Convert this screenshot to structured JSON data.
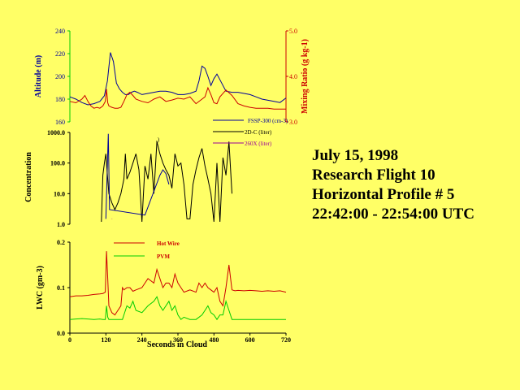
{
  "title_lines": [
    "July 15, 1998",
    "Research Flight 10",
    "Horizontal Profile # 5",
    "22:42:00 - 22:54:00 UTC"
  ],
  "colors": {
    "background": "#ffff66",
    "blue": "#000099",
    "red": "#cc0000",
    "green": "#00cc00",
    "black": "#000000",
    "magenta": "#990099"
  },
  "chart_data": [
    {
      "type": "line",
      "panel": "altitude",
      "xlim": [
        0,
        720
      ],
      "x_ticks": [],
      "ylabel": "Altitude (m)",
      "ylim": [
        160,
        240
      ],
      "yticks": [
        "160",
        "180",
        "200",
        "220",
        "240"
      ],
      "y2label": "Mixing Ratio (g kg-1)",
      "y2lim": [
        3.0,
        5.0
      ],
      "y2ticks": [
        "3.0",
        "4.0",
        "5.0"
      ],
      "grid": false,
      "series": [
        {
          "name": "",
          "axis": "left",
          "color": "blue",
          "x": [
            0,
            20,
            40,
            60,
            80,
            100,
            115,
            125,
            135,
            145,
            155,
            165,
            175,
            185,
            195,
            205,
            215,
            225,
            240,
            260,
            280,
            300,
            320,
            340,
            360,
            380,
            400,
            420,
            430,
            440,
            450,
            460,
            470,
            480,
            490,
            500,
            520,
            540,
            560,
            580,
            600,
            620,
            640,
            660,
            680,
            700,
            720
          ],
          "y": [
            182,
            180,
            177,
            175,
            176,
            178,
            183,
            196,
            221,
            213,
            194,
            189,
            186,
            184,
            184,
            186,
            187,
            186,
            184,
            185,
            186,
            187,
            187,
            186,
            184,
            184,
            185,
            187,
            196,
            209,
            207,
            200,
            192,
            198,
            202,
            197,
            187,
            186,
            186,
            185,
            184,
            182,
            180,
            179,
            178,
            177,
            181
          ]
        },
        {
          "name": "",
          "axis": "right",
          "color": "red",
          "x": [
            0,
            20,
            40,
            50,
            60,
            70,
            80,
            90,
            100,
            110,
            118,
            122,
            126,
            130,
            140,
            150,
            160,
            170,
            180,
            190,
            200,
            210,
            220,
            240,
            260,
            280,
            300,
            320,
            340,
            360,
            380,
            400,
            420,
            440,
            450,
            460,
            470,
            480,
            490,
            500,
            520,
            540,
            560,
            580,
            600,
            620,
            640,
            660,
            680,
            700,
            720
          ],
          "y": [
            3.45,
            3.42,
            3.5,
            3.58,
            3.45,
            3.35,
            3.3,
            3.32,
            3.3,
            3.35,
            3.45,
            3.72,
            3.42,
            3.35,
            3.32,
            3.3,
            3.3,
            3.32,
            3.45,
            3.6,
            3.65,
            3.58,
            3.5,
            3.45,
            3.42,
            3.5,
            3.55,
            3.45,
            3.48,
            3.52,
            3.5,
            3.55,
            3.4,
            3.5,
            3.55,
            3.75,
            3.6,
            3.42,
            3.4,
            3.55,
            3.7,
            3.58,
            3.4,
            3.35,
            3.32,
            3.3,
            3.3,
            3.3,
            3.28,
            3.28,
            3.28
          ]
        }
      ]
    },
    {
      "type": "line",
      "panel": "concentration",
      "xlim": [
        0,
        720
      ],
      "x_ticks": [],
      "ylabel": "Concentration",
      "ylim": [
        1,
        1000
      ],
      "yscale": "log",
      "yticks": [
        "1.0",
        "10.0",
        "100.0",
        "1000.0"
      ],
      "legend": [
        "FSSP-300 (cm-3)",
        "2D-C (liter)",
        "260X (liter)"
      ],
      "legend_position": "top-right",
      "annotations": [
        ",)"
      ],
      "series": [
        {
          "name": "FSSP-300 (cm-3)",
          "color": "blue",
          "x": [
            120,
            124,
            128,
            132,
            250,
            300,
            310,
            320,
            330
          ],
          "y": [
            1.5,
            40,
            900,
            3,
            2,
            40,
            60,
            45,
            20
          ]
        },
        {
          "name": "2D-C (liter)",
          "color": "black",
          "x": [
            105,
            110,
            115,
            120,
            125,
            130,
            140,
            150,
            160,
            170,
            180,
            185,
            190,
            200,
            210,
            220,
            230,
            240,
            250,
            260,
            270,
            280,
            290,
            300,
            310,
            320,
            330,
            340,
            350,
            360,
            370,
            380,
            390,
            400,
            410,
            420,
            430,
            440,
            450,
            460,
            470,
            480,
            490,
            500,
            510,
            520,
            530,
            540
          ],
          "y": [
            1.2,
            40,
            100,
            200,
            40,
            10,
            5,
            3,
            5,
            10,
            30,
            200,
            30,
            50,
            100,
            200,
            60,
            1.2,
            80,
            30,
            200,
            10,
            500,
            200,
            100,
            60,
            40,
            15,
            200,
            80,
            100,
            20,
            1.5,
            1.5,
            20,
            60,
            150,
            300,
            80,
            30,
            10,
            1.2,
            100,
            1.2,
            150,
            40,
            500,
            10
          ]
        },
        {
          "name": "260X (liter)",
          "color": "magenta",
          "x": [
            140,
            141
          ],
          "y": [
            1.5,
            1.5
          ]
        }
      ]
    },
    {
      "type": "line",
      "panel": "lwc",
      "xlim": [
        0,
        720
      ],
      "xlabel": "Seconds in Cloud",
      "x_ticks": [
        "0",
        "120",
        "240",
        "360",
        "480",
        "600",
        "720"
      ],
      "ylabel": "LWC (gm-3)",
      "ylim": [
        0,
        0.2
      ],
      "yticks": [
        "0.0",
        "0.1",
        "0.2"
      ],
      "legend": [
        "Hot Wire",
        "PVM"
      ],
      "legend_position": "top",
      "series": [
        {
          "name": "Hot Wire",
          "color": "red",
          "x": [
            0,
            20,
            40,
            60,
            80,
            100,
            110,
            118,
            122,
            126,
            130,
            140,
            150,
            160,
            170,
            175,
            180,
            190,
            200,
            210,
            220,
            240,
            260,
            280,
            290,
            300,
            310,
            320,
            330,
            340,
            350,
            360,
            370,
            380,
            400,
            420,
            430,
            440,
            450,
            460,
            470,
            480,
            490,
            500,
            510,
            520,
            530,
            540,
            550,
            560,
            580,
            600,
            620,
            640,
            660,
            680,
            700,
            720
          ],
          "y": [
            0.08,
            0.082,
            0.082,
            0.083,
            0.085,
            0.086,
            0.087,
            0.09,
            0.18,
            0.12,
            0.06,
            0.045,
            0.04,
            0.05,
            0.06,
            0.1,
            0.095,
            0.1,
            0.1,
            0.092,
            0.095,
            0.1,
            0.12,
            0.11,
            0.14,
            0.12,
            0.1,
            0.11,
            0.11,
            0.1,
            0.13,
            0.11,
            0.1,
            0.09,
            0.095,
            0.09,
            0.11,
            0.1,
            0.11,
            0.1,
            0.095,
            0.09,
            0.1,
            0.07,
            0.06,
            0.1,
            0.15,
            0.095,
            0.093,
            0.094,
            0.093,
            0.094,
            0.093,
            0.092,
            0.093,
            0.092,
            0.093,
            0.09
          ]
        },
        {
          "name": "PVM",
          "color": "green",
          "x": [
            0,
            20,
            40,
            60,
            80,
            100,
            110,
            118,
            122,
            126,
            130,
            140,
            150,
            160,
            175,
            180,
            190,
            200,
            210,
            220,
            240,
            260,
            280,
            290,
            300,
            310,
            320,
            330,
            340,
            350,
            360,
            370,
            380,
            400,
            420,
            440,
            450,
            460,
            470,
            480,
            490,
            500,
            510,
            520,
            530,
            540,
            560,
            580,
            600,
            620,
            640,
            660,
            680,
            700,
            720
          ],
          "y": [
            0.03,
            0.031,
            0.032,
            0.031,
            0.03,
            0.031,
            0.03,
            0.03,
            0.06,
            0.035,
            0.03,
            0.03,
            0.03,
            0.03,
            0.03,
            0.04,
            0.06,
            0.055,
            0.07,
            0.05,
            0.045,
            0.06,
            0.07,
            0.08,
            0.06,
            0.05,
            0.06,
            0.07,
            0.05,
            0.06,
            0.04,
            0.03,
            0.035,
            0.03,
            0.03,
            0.04,
            0.05,
            0.06,
            0.045,
            0.04,
            0.03,
            0.04,
            0.04,
            0.07,
            0.05,
            0.03,
            0.03,
            0.03,
            0.03,
            0.03,
            0.03,
            0.03,
            0.03,
            0.03,
            0.03
          ]
        }
      ]
    }
  ]
}
